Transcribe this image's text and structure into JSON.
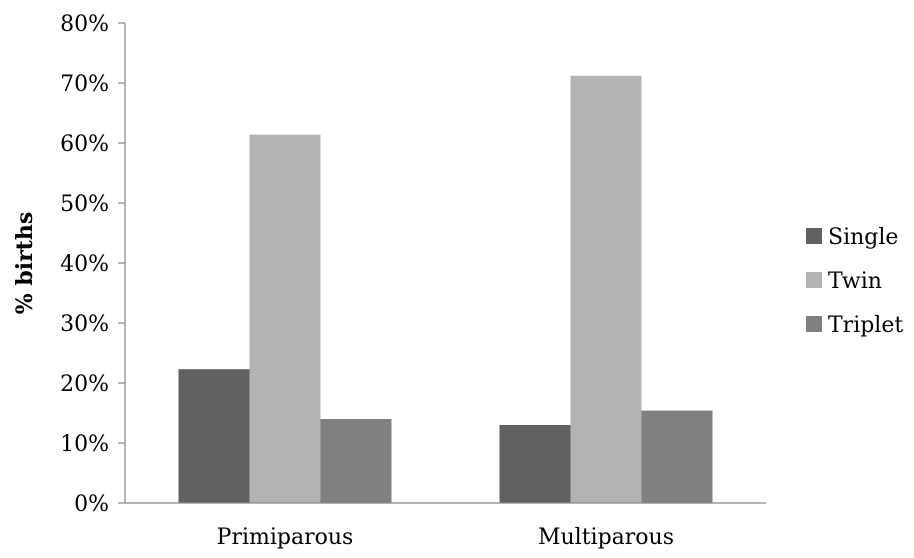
{
  "chart_data": {
    "type": "bar",
    "title": "",
    "xlabel": "",
    "ylabel": "% births",
    "categories": [
      "Primiparous",
      "Multiparous"
    ],
    "series": [
      {
        "name": "Single",
        "values": [
          22.3,
          13.0
        ],
        "color": "#616161"
      },
      {
        "name": "Twin",
        "values": [
          61.4,
          71.2
        ],
        "color": "#b3b3b3"
      },
      {
        "name": "Triplet",
        "values": [
          14.0,
          15.4
        ],
        "color": "#808080"
      }
    ],
    "ylim": [
      0,
      80
    ],
    "yticks": [
      "0%",
      "10%",
      "20%",
      "30%",
      "40%",
      "50%",
      "60%",
      "70%",
      "80%"
    ],
    "grid": false,
    "legend_position": "right"
  }
}
